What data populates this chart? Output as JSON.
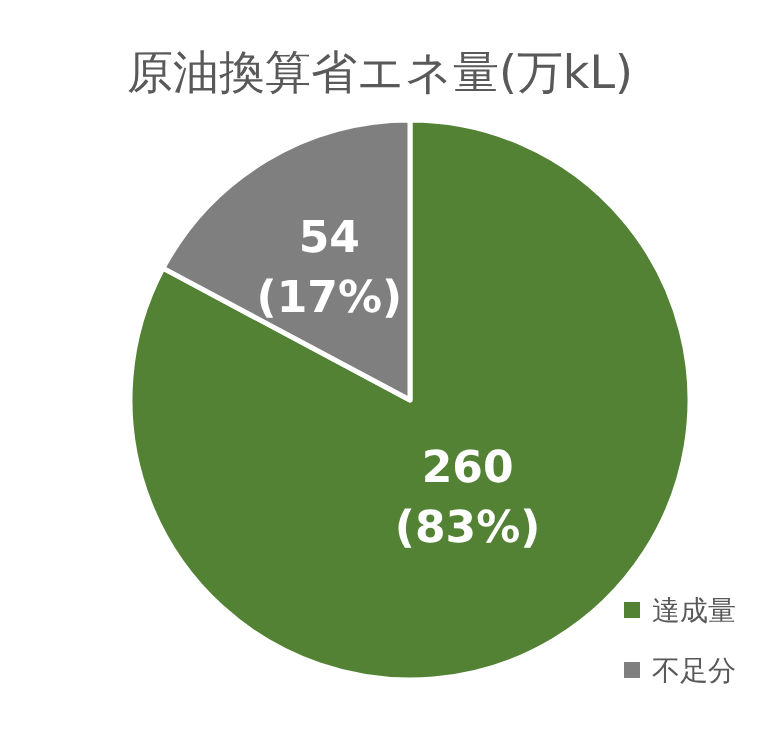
{
  "chart_data": {
    "type": "pie",
    "title": "原油換算省エネ量(万kL)",
    "categories": [
      "達成量",
      "不足分"
    ],
    "values": [
      260,
      54
    ],
    "colors": [
      "#548235",
      "#7f7f7f"
    ],
    "value_labels": [
      "260 (83%)",
      "54 (17%)"
    ],
    "legend": "bottom right"
  }
}
